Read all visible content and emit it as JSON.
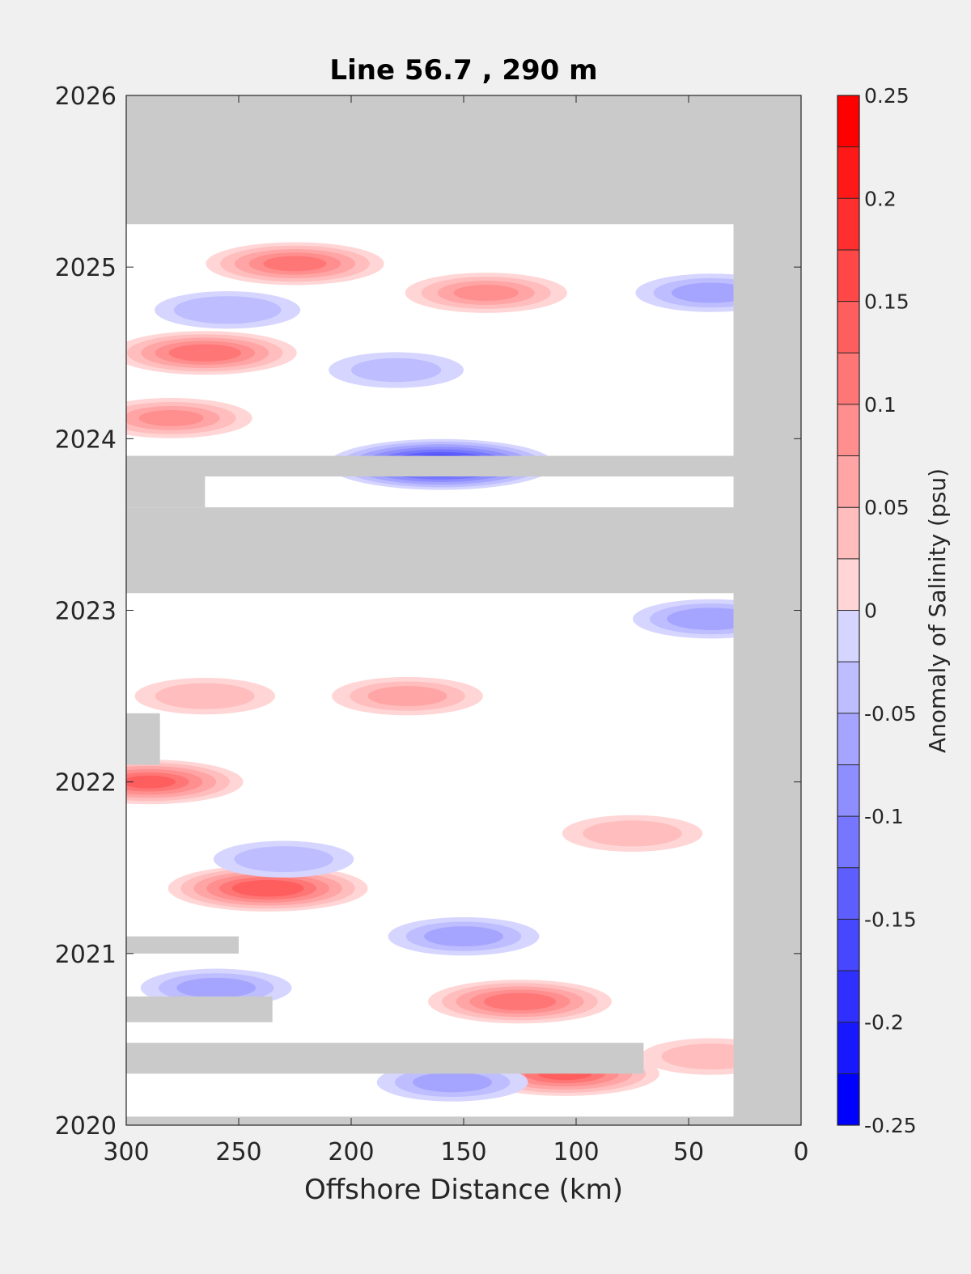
{
  "chart_data": {
    "type": "heatmap",
    "title": "Line 56.7 , 290 m",
    "xlabel": "Offshore Distance (km)",
    "ylabel": "",
    "xlim": [
      300,
      0
    ],
    "ylim": [
      2020,
      2026
    ],
    "x_ticks": [
      "300",
      "250",
      "200",
      "150",
      "100",
      "50",
      "0"
    ],
    "y_ticks": [
      "2020",
      "2021",
      "2022",
      "2023",
      "2024",
      "2025",
      "2026"
    ],
    "colorbar": {
      "label": "Anomaly of Salinity (psu)",
      "range": [
        -0.25,
        0.25
      ],
      "step": 0.025,
      "tick_labels": [
        "0.25",
        "0.2",
        "0.15",
        "0.1",
        "0.05",
        "0",
        "-0.05",
        "-0.1",
        "-0.15",
        "-0.2",
        "-0.25"
      ],
      "tick_values": [
        0.25,
        0.2,
        0.15,
        0.1,
        0.05,
        0,
        -0.05,
        -0.1,
        -0.15,
        -0.2,
        -0.25
      ]
    },
    "colors": {
      "positive": "#ff0000",
      "negative": "#0000ff",
      "neutral": "#ffffff",
      "no_data": "#cacaca"
    },
    "data_extent": {
      "x": [
        300,
        30
      ],
      "y": [
        2020.05,
        2025.25
      ]
    },
    "no_data_bands": [
      {
        "x": [
          300,
          0
        ],
        "y": [
          2025.25,
          2026
        ]
      },
      {
        "x": [
          30,
          0
        ],
        "y": [
          2020,
          2025.25
        ]
      },
      {
        "x": [
          300,
          30
        ],
        "y": [
          2023.1,
          2023.6
        ]
      },
      {
        "x": [
          300,
          30
        ],
        "y": [
          2023.78,
          2023.9
        ]
      },
      {
        "x": [
          300,
          265
        ],
        "y": [
          2023.6,
          2023.78
        ]
      },
      {
        "x": [
          300,
          285
        ],
        "y": [
          2022.1,
          2022.4
        ]
      },
      {
        "x": [
          300,
          250
        ],
        "y": [
          2021.0,
          2021.1
        ]
      },
      {
        "x": [
          300,
          235
        ],
        "y": [
          2020.6,
          2020.75
        ]
      },
      {
        "x": [
          300,
          70
        ],
        "y": [
          2020.3,
          2020.48
        ]
      }
    ],
    "anomalies": [
      {
        "x": 225,
        "y": 2025.02,
        "value": 0.13
      },
      {
        "x": 265,
        "y": 2024.5,
        "value": 0.14
      },
      {
        "x": 160,
        "y": 2023.85,
        "value": -0.22
      },
      {
        "x": 237,
        "y": 2021.38,
        "value": 0.17
      },
      {
        "x": 290,
        "y": 2022.0,
        "value": 0.15
      },
      {
        "x": 125,
        "y": 2020.72,
        "value": 0.14
      },
      {
        "x": 105,
        "y": 2020.3,
        "value": 0.15
      },
      {
        "x": 150,
        "y": 2021.1,
        "value": -0.08
      },
      {
        "x": 40,
        "y": 2022.95,
        "value": -0.09
      },
      {
        "x": 255,
        "y": 2024.75,
        "value": -0.07
      },
      {
        "x": 140,
        "y": 2024.85,
        "value": 0.1
      },
      {
        "x": 230,
        "y": 2021.55,
        "value": -0.06
      },
      {
        "x": 175,
        "y": 2022.5,
        "value": 0.08
      },
      {
        "x": 280,
        "y": 2024.12,
        "value": 0.1
      },
      {
        "x": 40,
        "y": 2024.85,
        "value": -0.08
      },
      {
        "x": 260,
        "y": 2020.8,
        "value": -0.08
      },
      {
        "x": 75,
        "y": 2021.7,
        "value": 0.06
      },
      {
        "x": 155,
        "y": 2020.25,
        "value": -0.08
      },
      {
        "x": 265,
        "y": 2022.5,
        "value": 0.06
      },
      {
        "x": 180,
        "y": 2024.4,
        "value": -0.05
      },
      {
        "x": 40,
        "y": 2020.4,
        "value": 0.06
      }
    ]
  }
}
